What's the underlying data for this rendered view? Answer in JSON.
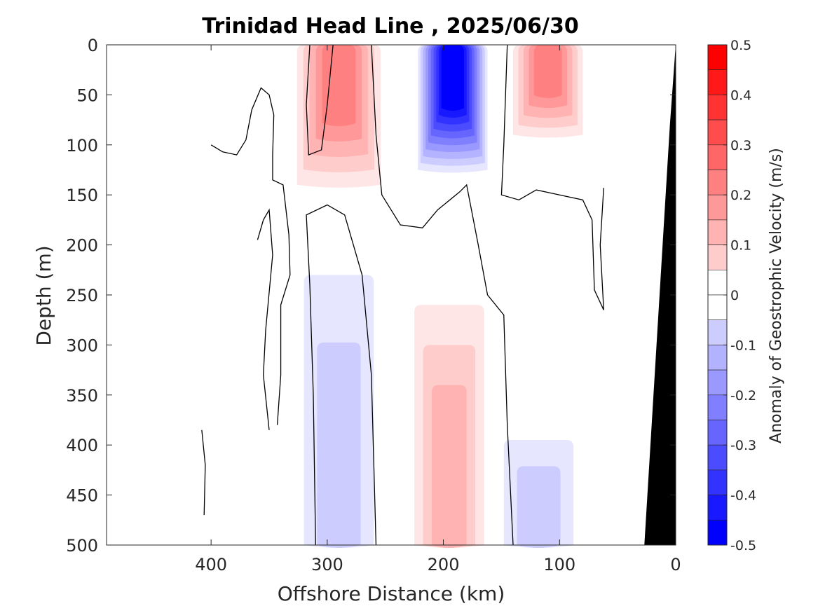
{
  "chart_data": {
    "type": "contour",
    "title": "Trinidad Head Line , 2025/06/30",
    "xlabel": "Offshore Distance (km)",
    "ylabel": "Depth (m)",
    "xlim": [
      490,
      0
    ],
    "ylim": [
      0,
      500
    ],
    "x_reversed": true,
    "y_reversed": true,
    "xticks": [
      400,
      300,
      200,
      100,
      0
    ],
    "xtick_labels": [
      "400",
      "300",
      "200",
      "100",
      "0"
    ],
    "yticks": [
      0,
      50,
      100,
      150,
      200,
      250,
      300,
      350,
      400,
      450,
      500
    ],
    "ytick_labels": [
      "0",
      "50",
      "100",
      "150",
      "200",
      "250",
      "300",
      "350",
      "400",
      "450",
      "500"
    ],
    "colorbar": {
      "label": "Anomaly of Geostrophic Velocity (m/s)",
      "min": -0.5,
      "max": 0.5,
      "step": 0.05,
      "ticks": [
        0.5,
        0.4,
        0.3,
        0.2,
        0.1,
        0,
        -0.1,
        -0.2,
        -0.3,
        -0.4,
        -0.5
      ],
      "tick_labels": [
        "0.5",
        "0.4",
        "0.3",
        "0.2",
        "0.1",
        "0",
        "-0.1",
        "-0.2",
        "-0.3",
        "-0.4",
        "-0.5"
      ],
      "positive_color": "#ff0000",
      "negative_color": "#0000ff",
      "zero_color": "#ffffff"
    },
    "features": [
      {
        "name": "positive core",
        "x_center": 290,
        "depth_top": 0,
        "depth_bottom": 140,
        "peak": 0.25
      },
      {
        "name": "negative core",
        "x_center": 192,
        "depth_top": 0,
        "depth_bottom": 125,
        "peak": -0.5
      },
      {
        "name": "positive core",
        "x_center": 110,
        "depth_top": 0,
        "depth_bottom": 90,
        "peak": 0.25
      },
      {
        "name": "negative deep",
        "x_center": 290,
        "depth_top": 230,
        "depth_bottom": 500,
        "peak": -0.1
      },
      {
        "name": "positive deep",
        "x_center": 195,
        "depth_top": 260,
        "depth_bottom": 500,
        "peak": 0.15
      },
      {
        "name": "negative deep",
        "x_center": 118,
        "depth_top": 395,
        "depth_bottom": 500,
        "peak": -0.1
      }
    ],
    "bathymetry_color": "#000000",
    "grid": false
  }
}
